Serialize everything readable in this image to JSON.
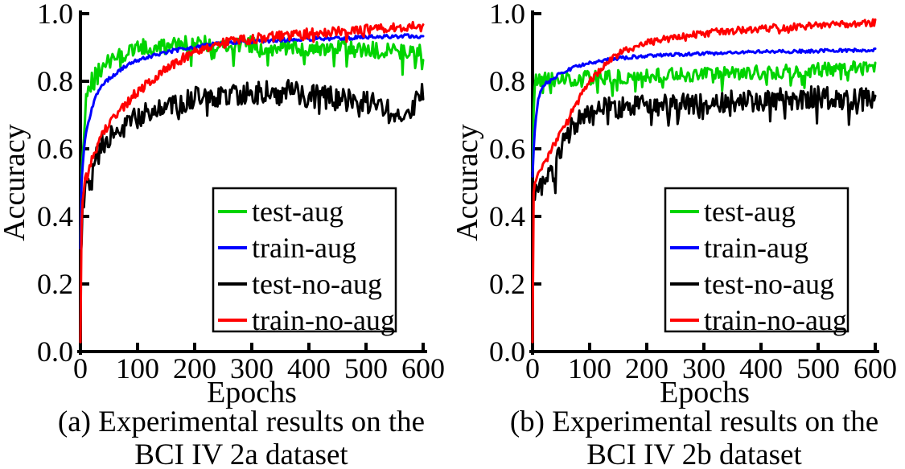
{
  "chart_data": [
    {
      "type": "line",
      "panel": "a",
      "caption": {
        "line1": "(a) Experimental results on the",
        "line2": "BCI IV 2a dataset"
      },
      "xlabel": "Epochs",
      "ylabel": "Accuracy",
      "xlim": [
        0,
        600
      ],
      "ylim": [
        0.0,
        1.0
      ],
      "x_ticks": [
        0,
        100,
        200,
        300,
        400,
        500,
        600
      ],
      "y_ticks": [
        0.0,
        0.2,
        0.4,
        0.6,
        0.8,
        1.0
      ],
      "grid": false,
      "legend_position": "lower-right-inside",
      "series": [
        {
          "name": "test-aug",
          "color": "#00d400",
          "noise": 0.025,
          "dip_prob": 0.1,
          "dip_amp": 0.06,
          "trend": [
            [
              0,
              0.3
            ],
            [
              2,
              0.55
            ],
            [
              5,
              0.66
            ],
            [
              10,
              0.74
            ],
            [
              20,
              0.8
            ],
            [
              30,
              0.83
            ],
            [
              50,
              0.86
            ],
            [
              80,
              0.885
            ],
            [
              110,
              0.9
            ],
            [
              150,
              0.905
            ],
            [
              200,
              0.91
            ],
            [
              260,
              0.913
            ],
            [
              320,
              0.905
            ],
            [
              400,
              0.9
            ],
            [
              470,
              0.895
            ],
            [
              540,
              0.89
            ],
            [
              600,
              0.885
            ]
          ]
        },
        {
          "name": "train-aug",
          "color": "#0000ff",
          "noise": 0.006,
          "dip_prob": 0.0,
          "dip_amp": 0.0,
          "trend": [
            [
              0,
              0.3
            ],
            [
              2,
              0.5
            ],
            [
              5,
              0.58
            ],
            [
              10,
              0.65
            ],
            [
              20,
              0.72
            ],
            [
              30,
              0.765
            ],
            [
              45,
              0.8
            ],
            [
              60,
              0.82
            ],
            [
              80,
              0.845
            ],
            [
              100,
              0.862
            ],
            [
              130,
              0.878
            ],
            [
              160,
              0.89
            ],
            [
              200,
              0.901
            ],
            [
              250,
              0.912
            ],
            [
              300,
              0.918
            ],
            [
              360,
              0.923
            ],
            [
              420,
              0.926
            ],
            [
              480,
              0.929
            ],
            [
              540,
              0.932
            ],
            [
              600,
              0.934
            ]
          ]
        },
        {
          "name": "test-no-aug",
          "color": "#000000",
          "noise": 0.035,
          "dip_prob": 0.06,
          "dip_amp": 0.04,
          "trend": [
            [
              0,
              0.24
            ],
            [
              3,
              0.4
            ],
            [
              6,
              0.46
            ],
            [
              10,
              0.5
            ],
            [
              14,
              0.53
            ],
            [
              18,
              0.48
            ],
            [
              22,
              0.52
            ],
            [
              28,
              0.58
            ],
            [
              35,
              0.61
            ],
            [
              45,
              0.625
            ],
            [
              55,
              0.64
            ],
            [
              70,
              0.66
            ],
            [
              90,
              0.685
            ],
            [
              110,
              0.7
            ],
            [
              140,
              0.72
            ],
            [
              170,
              0.735
            ],
            [
              200,
              0.75
            ],
            [
              240,
              0.755
            ],
            [
              280,
              0.76
            ],
            [
              320,
              0.765
            ],
            [
              360,
              0.77
            ],
            [
              400,
              0.755
            ],
            [
              440,
              0.75
            ],
            [
              480,
              0.74
            ],
            [
              520,
              0.73
            ],
            [
              550,
              0.71
            ],
            [
              575,
              0.7
            ],
            [
              600,
              0.77
            ]
          ]
        },
        {
          "name": "train-no-aug",
          "color": "#ff0000",
          "noise": 0.015,
          "dip_prob": 0.03,
          "dip_amp": 0.02,
          "trend": [
            [
              0,
              0.02
            ],
            [
              1,
              0.3
            ],
            [
              3,
              0.43
            ],
            [
              6,
              0.48
            ],
            [
              10,
              0.52
            ],
            [
              20,
              0.565
            ],
            [
              30,
              0.61
            ],
            [
              40,
              0.645
            ],
            [
              50,
              0.67
            ],
            [
              60,
              0.695
            ],
            [
              80,
              0.735
            ],
            [
              100,
              0.77
            ],
            [
              120,
              0.795
            ],
            [
              140,
              0.822
            ],
            [
              160,
              0.848
            ],
            [
              180,
              0.868
            ],
            [
              200,
              0.885
            ],
            [
              230,
              0.902
            ],
            [
              260,
              0.915
            ],
            [
              300,
              0.925
            ],
            [
              350,
              0.935
            ],
            [
              400,
              0.942
            ],
            [
              450,
              0.948
            ],
            [
              500,
              0.952
            ],
            [
              550,
              0.957
            ],
            [
              600,
              0.962
            ]
          ]
        }
      ]
    },
    {
      "type": "line",
      "panel": "b",
      "caption": {
        "line1": "(b) Experimental results on the",
        "line2": "BCI IV 2b dataset"
      },
      "xlabel": "Epochs",
      "ylabel": "Accuracy",
      "xlim": [
        0,
        600
      ],
      "ylim": [
        0.0,
        1.0
      ],
      "x_ticks": [
        0,
        100,
        200,
        300,
        400,
        500,
        600
      ],
      "y_ticks": [
        0.0,
        0.2,
        0.4,
        0.6,
        0.8,
        1.0
      ],
      "grid": false,
      "legend_position": "lower-right-inside",
      "series": [
        {
          "name": "test-aug",
          "color": "#00d400",
          "noise": 0.021,
          "dip_prob": 0.1,
          "dip_amp": 0.045,
          "trend": [
            [
              0,
              0.55
            ],
            [
              1,
              0.7
            ],
            [
              3,
              0.78
            ],
            [
              6,
              0.8
            ],
            [
              20,
              0.805
            ],
            [
              60,
              0.805
            ],
            [
              100,
              0.81
            ],
            [
              150,
              0.812
            ],
            [
              200,
              0.815
            ],
            [
              260,
              0.82
            ],
            [
              320,
              0.822
            ],
            [
              380,
              0.825
            ],
            [
              440,
              0.828
            ],
            [
              500,
              0.833
            ],
            [
              550,
              0.838
            ],
            [
              600,
              0.84
            ]
          ]
        },
        {
          "name": "train-aug",
          "color": "#0000ff",
          "noise": 0.005,
          "dip_prob": 0.0,
          "dip_amp": 0.0,
          "trend": [
            [
              0,
              0.52
            ],
            [
              2,
              0.6
            ],
            [
              5,
              0.68
            ],
            [
              10,
              0.745
            ],
            [
              15,
              0.775
            ],
            [
              20,
              0.79
            ],
            [
              30,
              0.8
            ],
            [
              50,
              0.825
            ],
            [
              80,
              0.845
            ],
            [
              110,
              0.858
            ],
            [
              150,
              0.868
            ],
            [
              200,
              0.875
            ],
            [
              300,
              0.882
            ],
            [
              400,
              0.887
            ],
            [
              500,
              0.89
            ],
            [
              600,
              0.893
            ]
          ]
        },
        {
          "name": "test-no-aug",
          "color": "#000000",
          "noise": 0.033,
          "dip_prob": 0.09,
          "dip_amp": 0.06,
          "trend": [
            [
              0,
              0.46
            ],
            [
              6,
              0.47
            ],
            [
              12,
              0.475
            ],
            [
              20,
              0.487
            ],
            [
              30,
              0.515
            ],
            [
              40,
              0.55
            ],
            [
              50,
              0.6
            ],
            [
              60,
              0.64
            ],
            [
              70,
              0.665
            ],
            [
              80,
              0.682
            ],
            [
              100,
              0.7
            ],
            [
              130,
              0.72
            ],
            [
              160,
              0.725
            ],
            [
              200,
              0.73
            ],
            [
              250,
              0.733
            ],
            [
              300,
              0.736
            ],
            [
              350,
              0.74
            ],
            [
              400,
              0.745
            ],
            [
              450,
              0.75
            ],
            [
              500,
              0.752
            ],
            [
              550,
              0.748
            ],
            [
              600,
              0.752
            ]
          ]
        },
        {
          "name": "train-no-aug",
          "color": "#ff0000",
          "noise": 0.011,
          "dip_prob": 0.02,
          "dip_amp": 0.015,
          "trend": [
            [
              0,
              0.02
            ],
            [
              1,
              0.42
            ],
            [
              3,
              0.5
            ],
            [
              10,
              0.522
            ],
            [
              20,
              0.55
            ],
            [
              30,
              0.585
            ],
            [
              40,
              0.62
            ],
            [
              50,
              0.655
            ],
            [
              60,
              0.685
            ],
            [
              70,
              0.715
            ],
            [
              80,
              0.742
            ],
            [
              100,
              0.8
            ],
            [
              120,
              0.838
            ],
            [
              140,
              0.868
            ],
            [
              160,
              0.888
            ],
            [
              180,
              0.9
            ],
            [
              200,
              0.912
            ],
            [
              230,
              0.925
            ],
            [
              260,
              0.934
            ],
            [
              300,
              0.942
            ],
            [
              350,
              0.95
            ],
            [
              400,
              0.956
            ],
            [
              450,
              0.961
            ],
            [
              500,
              0.965
            ],
            [
              550,
              0.969
            ],
            [
              600,
              0.973
            ]
          ]
        }
      ]
    }
  ]
}
